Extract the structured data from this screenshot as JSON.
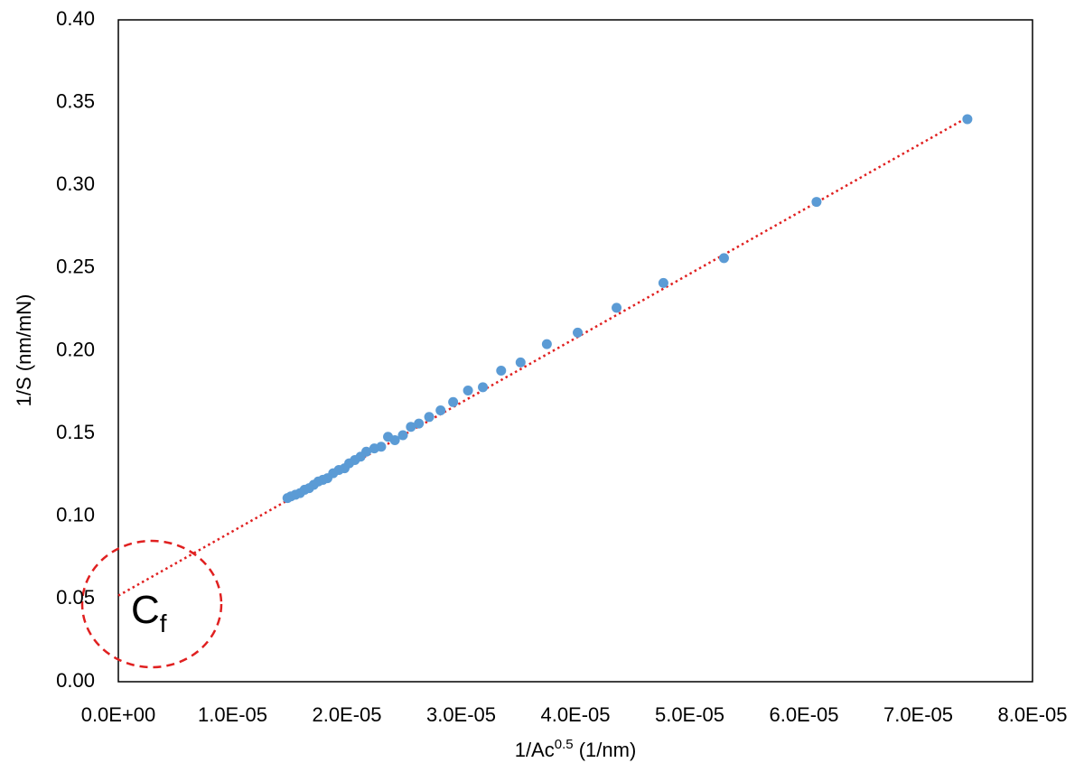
{
  "chart_data": {
    "type": "scatter",
    "y_label": "1/S (nm/mN)",
    "x_label": {
      "base": "1/Ac",
      "sup": "0.5",
      "rest": " (1/nm)"
    },
    "xlim": [
      0,
      8e-05
    ],
    "ylim": [
      0,
      0.4
    ],
    "xticks": [
      {
        "value": 0,
        "label": "0.0E+00"
      },
      {
        "value": 1e-05,
        "label": "1.0E-05"
      },
      {
        "value": 2e-05,
        "label": "2.0E-05"
      },
      {
        "value": 3e-05,
        "label": "3.0E-05"
      },
      {
        "value": 4e-05,
        "label": "4.0E-05"
      },
      {
        "value": 5e-05,
        "label": "5.0E-05"
      },
      {
        "value": 6e-05,
        "label": "6.0E-05"
      },
      {
        "value": 7e-05,
        "label": "7.0E-05"
      },
      {
        "value": 8e-05,
        "label": "8.0E-05"
      }
    ],
    "yticks": [
      {
        "value": 0,
        "label": "0.00"
      },
      {
        "value": 0.05,
        "label": "0.05"
      },
      {
        "value": 0.1,
        "label": "0.10"
      },
      {
        "value": 0.15,
        "label": "0.15"
      },
      {
        "value": 0.2,
        "label": "0.20"
      },
      {
        "value": 0.25,
        "label": "0.25"
      },
      {
        "value": 0.3,
        "label": "0.30"
      },
      {
        "value": 0.35,
        "label": "0.35"
      },
      {
        "value": 0.4,
        "label": "0.40"
      }
    ],
    "grid": false,
    "series": [
      {
        "color": "#5b9bd5",
        "x": [
          7.43e-05,
          6.11e-05,
          5.3e-05,
          4.77e-05,
          4.36e-05,
          4.02e-05,
          3.75e-05,
          3.52e-05,
          3.35e-05,
          3.19e-05,
          3.06e-05,
          2.93e-05,
          2.82e-05,
          2.72e-05,
          2.63e-05,
          2.56e-05,
          2.49e-05,
          2.42e-05,
          2.36e-05,
          2.3e-05,
          2.24e-05,
          2.17e-05,
          2.12e-05,
          2.07e-05,
          2.02e-05,
          1.98e-05,
          1.93e-05,
          1.88e-05,
          1.83e-05,
          1.79e-05,
          1.75e-05,
          1.71e-05,
          1.67e-05,
          1.63e-05,
          1.59e-05,
          1.55e-05,
          1.51e-05,
          1.48e-05
        ],
        "values": [
          0.34,
          0.29,
          0.256,
          0.241,
          0.226,
          0.211,
          0.204,
          0.193,
          0.188,
          0.178,
          0.176,
          0.169,
          0.164,
          0.16,
          0.156,
          0.154,
          0.149,
          0.146,
          0.148,
          0.142,
          0.141,
          0.139,
          0.136,
          0.134,
          0.132,
          0.129,
          0.128,
          0.126,
          0.123,
          0.122,
          0.121,
          0.119,
          0.117,
          0.116,
          0.114,
          0.113,
          0.112,
          0.111
        ]
      }
    ],
    "trendline": {
      "color": "#e02020",
      "x": [
        0,
        7.43e-05
      ],
      "values": [
        0.052,
        0.341
      ]
    },
    "annotation": {
      "text": "C",
      "subscript": "f",
      "color": "#e02020"
    }
  }
}
